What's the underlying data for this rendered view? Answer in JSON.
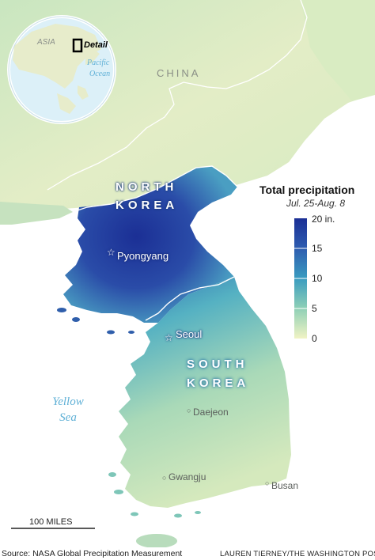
{
  "map": {
    "labels": {
      "china": "CHINA",
      "north_korea_1": "NORTH",
      "north_korea_2": "KOREA",
      "south_korea_1": "SOUTH",
      "south_korea_2": "KOREA",
      "yellow_sea_1": "Yellow",
      "yellow_sea_2": "Sea"
    },
    "cities": {
      "pyongyang": "Pyongyang",
      "seoul": "Seoul",
      "daejeon": "Daejeon",
      "gwangju": "Gwangju",
      "busan": "Busan"
    },
    "scale_bar": "100 MILES",
    "colors": {
      "ocean": "#ffffff",
      "land_low": "#eef1c4",
      "land_mid": "#7fc2b4",
      "land_high": "#2b49a8",
      "land_max": "#1b2f95",
      "borders": "#ffffff"
    }
  },
  "inset": {
    "asia": "ASIA",
    "detail": "Detail",
    "ocean_1": "Pacific",
    "ocean_2": "Ocean",
    "water_color": "#dcf0f8",
    "land_color": "#e7eccb"
  },
  "legend": {
    "title": "Total precipitation",
    "subtitle": "Jul. 25-Aug. 8",
    "ticks": [
      "20 in.",
      "15",
      "10",
      "5",
      "0"
    ],
    "max_value": 20,
    "min_value": 0,
    "gradient": [
      "#1b2f95",
      "#2e5db0",
      "#3a9cc0",
      "#8fd0b6",
      "#f1f3c4"
    ]
  },
  "footer": {
    "source": "Source: NASA Global Precipitation Measurement",
    "credit": "LAUREN TIERNEY/THE WASHINGTON POST"
  }
}
